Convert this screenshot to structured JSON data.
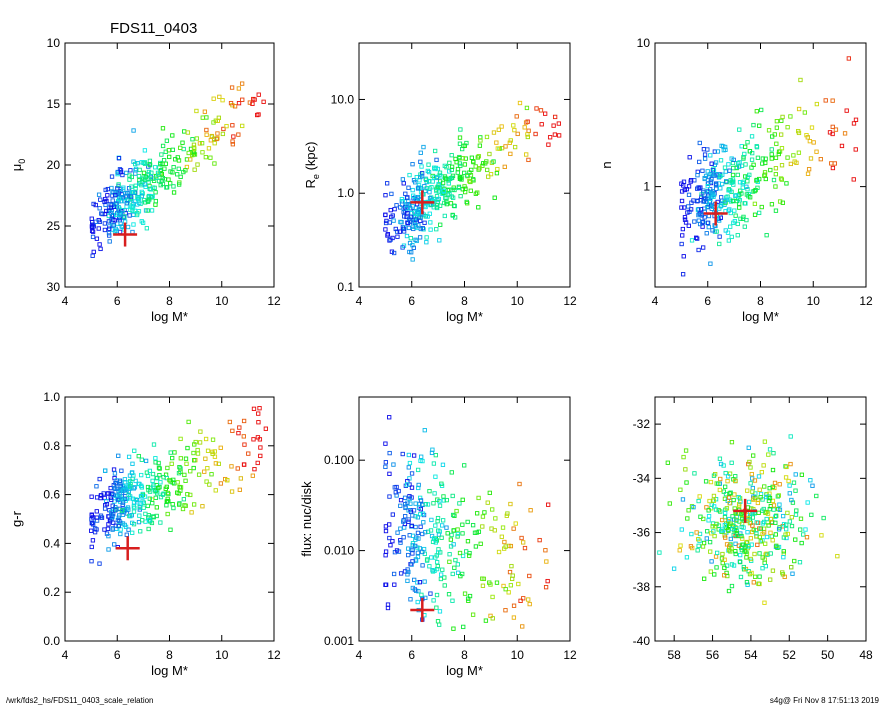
{
  "page": {
    "title": "FDS11_0403",
    "footer_left": "/wrk/fds2_hs/FDS11_0403_scale_relation",
    "footer_right": "s4g@  Fri Nov  8 17:51:13 2019"
  },
  "chart_data": [
    {
      "type": "scatter",
      "xlabel": "log M*",
      "ylabel": "μ",
      "ylabel_sub": "0",
      "xlim": [
        4,
        12
      ],
      "ylim": [
        30,
        10
      ],
      "xticks": [
        "4",
        "6",
        "8",
        "10",
        "12"
      ],
      "yticks": [
        "10",
        "15",
        "20",
        "25",
        "30"
      ],
      "highlight": {
        "x": 6.3,
        "y": 25.7
      },
      "cloud": {
        "x_center": 7.0,
        "y_at_x5": 25.0,
        "slope": -1.6,
        "spread": 1.3,
        "n": 380,
        "x_min": 5.0,
        "x_max": 11.7
      }
    },
    {
      "type": "scatter",
      "xlabel": "log M*",
      "ylabel": "R",
      "ylabel_sub": "e",
      "ylabel_suffix": " (kpc)",
      "xlim": [
        4,
        12
      ],
      "ylim": [
        0.1,
        40
      ],
      "log_y": true,
      "xticks": [
        "4",
        "6",
        "8",
        "10",
        "12"
      ],
      "yticks": [
        "0.1",
        "1.0",
        "10.0"
      ],
      "highlight": {
        "x": 6.4,
        "y": 0.8
      },
      "cloud": {
        "y_at_x5": 0.45,
        "slope": 0.17,
        "spread": 0.2,
        "n": 380,
        "x_min": 5.0,
        "x_max": 11.7
      }
    },
    {
      "type": "scatter",
      "xlabel": "log M*",
      "ylabel": "n",
      "xlim": [
        4,
        12
      ],
      "ylim": [
        0.2,
        10
      ],
      "log_y": true,
      "xticks": [
        "4",
        "6",
        "8",
        "10",
        "12"
      ],
      "yticks": [
        "1",
        "10"
      ],
      "highlight": {
        "x": 6.3,
        "y": 0.65
      },
      "cloud": {
        "y_at_x5": 0.65,
        "slope": 0.1,
        "spread": 0.17,
        "n": 380,
        "x_min": 5.0,
        "x_max": 11.7
      }
    },
    {
      "type": "scatter",
      "xlabel": "log M*",
      "ylabel": "g-r",
      "xlim": [
        4,
        12
      ],
      "ylim": [
        0.0,
        1.0
      ],
      "xticks": [
        "4",
        "6",
        "8",
        "10",
        "12"
      ],
      "yticks": [
        "0.0",
        "0.2",
        "0.4",
        "0.6",
        "0.8",
        "1.0"
      ],
      "highlight": {
        "x": 6.4,
        "y": 0.38
      },
      "cloud": {
        "y_at_x5": 0.52,
        "slope": 0.045,
        "spread": 0.08,
        "n": 380,
        "x_min": 5.0,
        "x_max": 11.7
      }
    },
    {
      "type": "scatter",
      "xlabel": "log M*",
      "ylabel": "flux: nuc/disk",
      "xlim": [
        4,
        12
      ],
      "ylim": [
        0.001,
        0.5
      ],
      "log_y": true,
      "xticks": [
        "4",
        "6",
        "8",
        "10",
        "12"
      ],
      "yticks": [
        "0.001",
        "0.010",
        "0.100"
      ],
      "highlight": {
        "x": 6.4,
        "y": 0.0022
      },
      "cloud": {
        "y_at_x5": 0.025,
        "slope": -0.12,
        "spread": 0.45,
        "n": 330,
        "x_min": 5.0,
        "x_max": 11.2
      }
    },
    {
      "type": "scatter",
      "xlabel": "",
      "ylabel": "",
      "xlim": [
        59,
        48
      ],
      "ylim": [
        -40,
        -31
      ],
      "xticks": [
        "58",
        "56",
        "54",
        "52",
        "50",
        "48"
      ],
      "yticks": [
        "-40",
        "-38",
        "-36",
        "-34",
        "-32"
      ],
      "highlight": {
        "x": 54.3,
        "y": -35.2
      },
      "cloud": {
        "x_center": 54.3,
        "y_center": -35.6,
        "x_spread": 1.6,
        "y_spread": 1.1,
        "n": 420
      }
    }
  ]
}
